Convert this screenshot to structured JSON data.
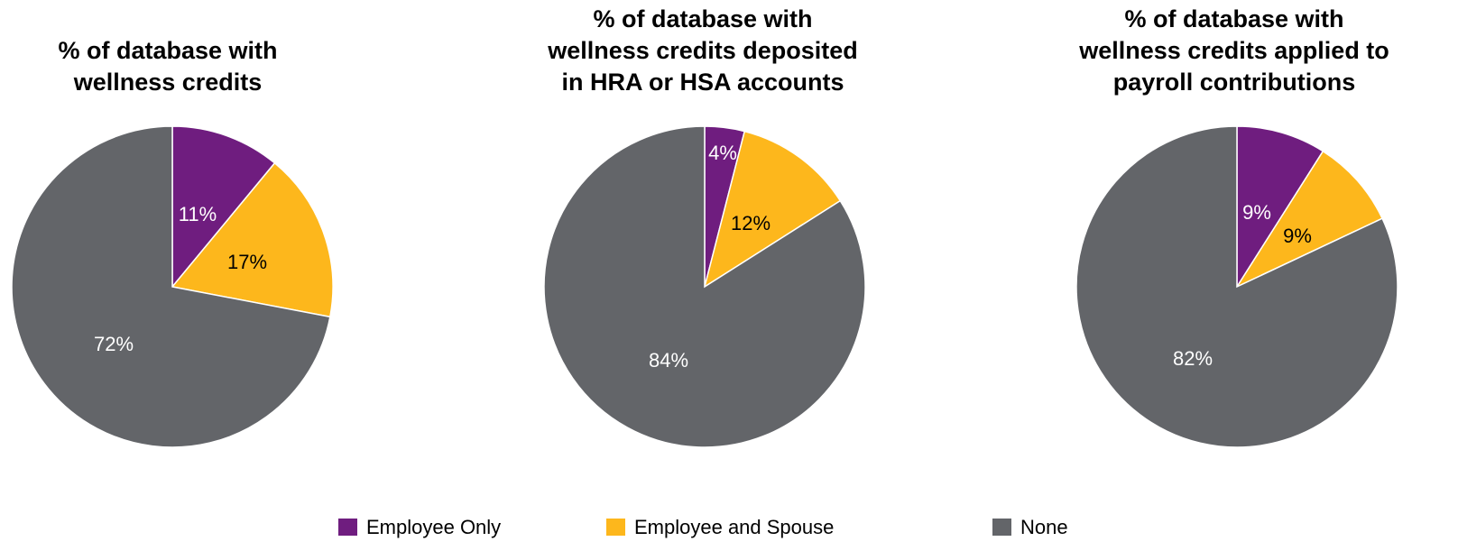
{
  "chart_data": [
    {
      "type": "pie",
      "title": "% of database with wellness credits",
      "title_lines": [
        "% of database with",
        "wellness credits"
      ],
      "categories": [
        "Employee Only",
        "Employee and Spouse",
        "None"
      ],
      "values": [
        11,
        17,
        72
      ],
      "value_labels": [
        "11%",
        "17%",
        "72%"
      ]
    },
    {
      "type": "pie",
      "title": "% of database with wellness credits deposited in HRA or HSA accounts",
      "title_lines": [
        "% of database with",
        "wellness credits deposited",
        "in HRA or HSA accounts"
      ],
      "categories": [
        "Employee Only",
        "Employee and Spouse",
        "None"
      ],
      "values": [
        4,
        12,
        84
      ],
      "value_labels": [
        "4%",
        "12%",
        "84%"
      ]
    },
    {
      "type": "pie",
      "title": "% of database with wellness credits applied to payroll contributions",
      "title_lines": [
        "% of database with",
        "wellness credits applied to",
        "payroll contributions"
      ],
      "categories": [
        "Employee Only",
        "Employee and Spouse",
        "None"
      ],
      "values": [
        9,
        9,
        82
      ],
      "value_labels": [
        "9%",
        "9%",
        "82%"
      ]
    }
  ],
  "legend": {
    "position": "bottom",
    "items": [
      {
        "label": "Employee Only",
        "color": "#6f1d7f"
      },
      {
        "label": "Employee and Spouse",
        "color": "#fdb71c"
      },
      {
        "label": "None",
        "color": "#636569"
      }
    ]
  },
  "colors": {
    "employee_only": "#6f1d7f",
    "employee_and_spouse": "#fdb71c",
    "none": "#636569",
    "label_light": "#ffffff",
    "label_dark": "#000000"
  }
}
